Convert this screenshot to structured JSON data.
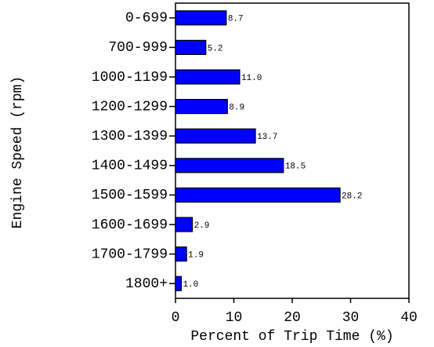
{
  "chart_data": {
    "type": "bar",
    "orientation": "horizontal",
    "categories": [
      "0-699",
      "700-999",
      "1000-1199",
      "1200-1299",
      "1300-1399",
      "1400-1499",
      "1500-1599",
      "1600-1699",
      "1700-1799",
      "1800+"
    ],
    "values": [
      8.7,
      5.2,
      11.0,
      8.9,
      13.7,
      18.5,
      28.2,
      2.9,
      1.9,
      1.0
    ],
    "value_labels": [
      "8.7",
      "5.2",
      "11.0",
      "8.9",
      "13.7",
      "18.5",
      "28.2",
      "2.9",
      "1.9",
      "1.0"
    ],
    "color": "#0000ff",
    "xlabel": "Percent of Trip Time (%)",
    "ylabel": "Engine Speed (rpm)",
    "xlim": [
      0,
      40
    ],
    "xticks": [
      0,
      10,
      20,
      30,
      40
    ]
  }
}
